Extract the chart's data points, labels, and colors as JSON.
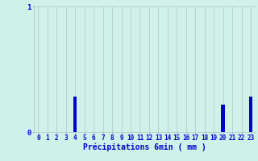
{
  "categories": [
    0,
    1,
    2,
    3,
    4,
    5,
    6,
    7,
    8,
    9,
    10,
    11,
    12,
    13,
    14,
    15,
    16,
    17,
    18,
    19,
    20,
    21,
    22,
    23
  ],
  "values": [
    0,
    0,
    0,
    0,
    0.28,
    0,
    0,
    0,
    0,
    0,
    0,
    0,
    0,
    0,
    0,
    0,
    0,
    0,
    0,
    0,
    0.22,
    0,
    0,
    0.28
  ],
  "bar_color": "#0000cc",
  "background_color": "#d0f0ea",
  "grid_color": "#b0cfc8",
  "text_color": "#0000cc",
  "xlabel": "Précipitations 6min ( mm )",
  "xlabel_fontsize": 7,
  "tick_fontsize": 5.5,
  "ylim": [
    0,
    1
  ],
  "xlim": [
    -0.5,
    23.5
  ]
}
